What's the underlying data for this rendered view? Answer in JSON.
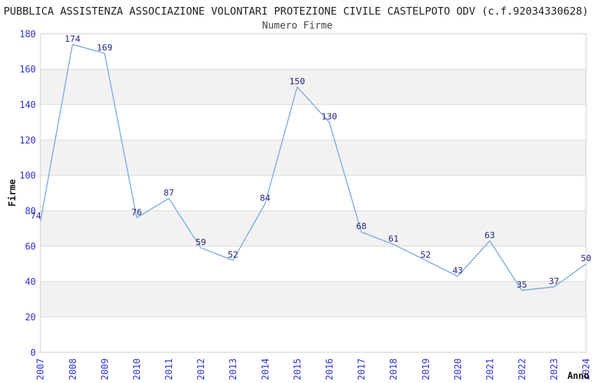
{
  "chart_data": {
    "type": "line",
    "title": "PUBBLICA ASSISTENZA ASSOCIAZIONE VOLONTARI PROTEZIONE CIVILE CASTELPOTO ODV (c.f.92034330628)",
    "subtitle": "Numero Firme",
    "xlabel": "Anno",
    "ylabel": "Firme",
    "x": [
      2007,
      2008,
      2009,
      2010,
      2011,
      2012,
      2013,
      2014,
      2015,
      2016,
      2017,
      2018,
      2019,
      2020,
      2021,
      2022,
      2023,
      2024
    ],
    "values": [
      74,
      174,
      169,
      76,
      87,
      59,
      52,
      84,
      150,
      130,
      68,
      61,
      52,
      43,
      63,
      35,
      37,
      50
    ],
    "ylim": [
      0,
      180
    ],
    "ytick_step": 20,
    "yticks": [
      0,
      20,
      40,
      60,
      80,
      100,
      120,
      140,
      160,
      180
    ],
    "grid": "horizontal-lines-with-alternating-bands",
    "legend": "none",
    "colors": {
      "line": "#78a8e0",
      "data_label": "#28287d",
      "tick_label": "#2d2dd8",
      "band": "#f2f2f2",
      "gridline": "#d9d9d9",
      "plot_border": "#cfcfcf",
      "title": "#222222",
      "subtitle": "#454545",
      "axis_title": "#111111",
      "background": "#ffffff"
    }
  }
}
